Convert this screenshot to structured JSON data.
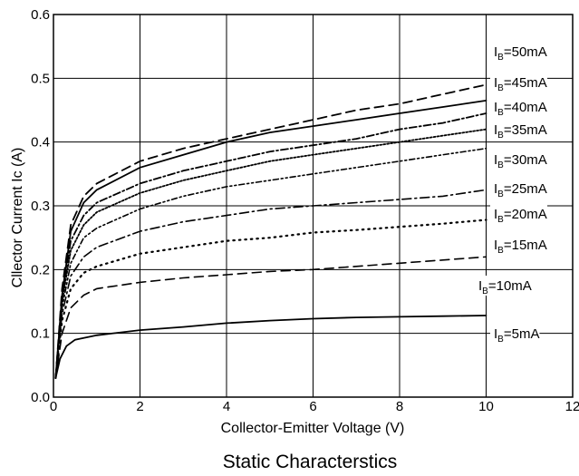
{
  "chart_data": {
    "type": "line",
    "title": "Static Characterstics",
    "xlabel": "Collector-Emitter Voltage (V)",
    "ylabel": "Cllector Current Ic (A)",
    "xlim": [
      0,
      12
    ],
    "ylim": [
      0,
      0.6
    ],
    "xticks": [
      "0",
      "2",
      "4",
      "6",
      "8",
      "10",
      "12"
    ],
    "yticks": [
      "0.0",
      "0.1",
      "0.2",
      "0.3",
      "0.4",
      "0.5",
      "0.6"
    ],
    "grid": true,
    "legend_position": "right (labels beside curve ends)",
    "series": [
      {
        "name": "I_B=50mA",
        "label_main": "I",
        "label_sub": "B",
        "label_rest": "=50mA",
        "dash": "10,6",
        "width": 1.8,
        "points": [
          [
            0.05,
            0.03
          ],
          [
            0.2,
            0.17
          ],
          [
            0.4,
            0.27
          ],
          [
            0.7,
            0.315
          ],
          [
            1,
            0.335
          ],
          [
            2,
            0.37
          ],
          [
            3,
            0.39
          ],
          [
            4,
            0.405
          ],
          [
            5,
            0.42
          ],
          [
            6,
            0.435
          ],
          [
            7,
            0.45
          ],
          [
            8,
            0.46
          ],
          [
            9,
            0.475
          ],
          [
            10,
            0.49
          ]
        ]
      },
      {
        "name": "I_B=45mA",
        "label_main": "I",
        "label_sub": "B",
        "label_rest": "=45mA",
        "dash": "",
        "width": 1.8,
        "points": [
          [
            0.05,
            0.03
          ],
          [
            0.2,
            0.16
          ],
          [
            0.4,
            0.26
          ],
          [
            0.7,
            0.305
          ],
          [
            1,
            0.325
          ],
          [
            2,
            0.36
          ],
          [
            3,
            0.38
          ],
          [
            4,
            0.4
          ],
          [
            5,
            0.415
          ],
          [
            6,
            0.425
          ],
          [
            7,
            0.435
          ],
          [
            8,
            0.445
          ],
          [
            9,
            0.455
          ],
          [
            10,
            0.465
          ]
        ]
      },
      {
        "name": "I_B=40mA",
        "label_main": "I",
        "label_sub": "B",
        "label_rest": "=40mA",
        "dash": "8,3,2,3",
        "width": 1.8,
        "points": [
          [
            0.05,
            0.03
          ],
          [
            0.2,
            0.155
          ],
          [
            0.4,
            0.245
          ],
          [
            0.7,
            0.285
          ],
          [
            1,
            0.305
          ],
          [
            2,
            0.335
          ],
          [
            3,
            0.355
          ],
          [
            4,
            0.37
          ],
          [
            5,
            0.385
          ],
          [
            6,
            0.395
          ],
          [
            7,
            0.405
          ],
          [
            8,
            0.42
          ],
          [
            9,
            0.43
          ],
          [
            10,
            0.445
          ]
        ]
      },
      {
        "name": "I_B=35mA",
        "label_main": "I",
        "label_sub": "B",
        "label_rest": "=35mA",
        "dash": "2,2",
        "width": 1.8,
        "points": [
          [
            0.05,
            0.03
          ],
          [
            0.2,
            0.15
          ],
          [
            0.4,
            0.23
          ],
          [
            0.7,
            0.27
          ],
          [
            1,
            0.29
          ],
          [
            2,
            0.32
          ],
          [
            3,
            0.34
          ],
          [
            4,
            0.355
          ],
          [
            5,
            0.37
          ],
          [
            6,
            0.38
          ],
          [
            7,
            0.39
          ],
          [
            8,
            0.4
          ],
          [
            9,
            0.41
          ],
          [
            10,
            0.42
          ]
        ]
      },
      {
        "name": "I_B=30mA",
        "label_main": "I",
        "label_sub": "B",
        "label_rest": "=30mA",
        "dash": "6,3,2,3,2,3",
        "width": 1.6,
        "points": [
          [
            0.05,
            0.03
          ],
          [
            0.2,
            0.14
          ],
          [
            0.4,
            0.21
          ],
          [
            0.7,
            0.25
          ],
          [
            1,
            0.265
          ],
          [
            2,
            0.295
          ],
          [
            3,
            0.315
          ],
          [
            4,
            0.33
          ],
          [
            5,
            0.34
          ],
          [
            6,
            0.35
          ],
          [
            7,
            0.36
          ],
          [
            8,
            0.37
          ],
          [
            9,
            0.38
          ],
          [
            10,
            0.39
          ]
        ]
      },
      {
        "name": "I_B=25mA",
        "label_main": "I",
        "label_sub": "B",
        "label_rest": "=25mA",
        "dash": "10,4,2,4",
        "width": 1.6,
        "points": [
          [
            0.05,
            0.03
          ],
          [
            0.2,
            0.13
          ],
          [
            0.4,
            0.19
          ],
          [
            0.7,
            0.22
          ],
          [
            1,
            0.235
          ],
          [
            2,
            0.26
          ],
          [
            3,
            0.275
          ],
          [
            4,
            0.285
          ],
          [
            5,
            0.295
          ],
          [
            6,
            0.3
          ],
          [
            7,
            0.305
          ],
          [
            8,
            0.31
          ],
          [
            9,
            0.315
          ],
          [
            10,
            0.325
          ]
        ]
      },
      {
        "name": "I_B=20mA",
        "label_main": "I",
        "label_sub": "B",
        "label_rest": "=20mA",
        "dash": "1.5,5",
        "width": 2.2,
        "points": [
          [
            0.05,
            0.03
          ],
          [
            0.2,
            0.12
          ],
          [
            0.4,
            0.17
          ],
          [
            0.7,
            0.195
          ],
          [
            1,
            0.205
          ],
          [
            2,
            0.225
          ],
          [
            3,
            0.235
          ],
          [
            4,
            0.245
          ],
          [
            5,
            0.25
          ],
          [
            6,
            0.258
          ],
          [
            7,
            0.262
          ],
          [
            8,
            0.267
          ],
          [
            9,
            0.272
          ],
          [
            10,
            0.278
          ]
        ]
      },
      {
        "name": "I_B=15mA",
        "label_main": "I",
        "label_sub": "B",
        "label_rest": "=15mA",
        "dash": "",
        "width": 0,
        "unlabeled_curve": true,
        "points": []
      },
      {
        "name": "I_B=10mA",
        "label_main": "I",
        "label_sub": "B",
        "label_rest": "=10mA",
        "dash": "10,6",
        "width": 1.6,
        "points": [
          [
            0.05,
            0.03
          ],
          [
            0.2,
            0.1
          ],
          [
            0.4,
            0.14
          ],
          [
            0.7,
            0.16
          ],
          [
            1,
            0.17
          ],
          [
            2,
            0.18
          ],
          [
            3,
            0.187
          ],
          [
            4,
            0.192
          ],
          [
            5,
            0.197
          ],
          [
            6,
            0.2
          ],
          [
            7,
            0.205
          ],
          [
            8,
            0.21
          ],
          [
            9,
            0.215
          ],
          [
            10,
            0.22
          ]
        ]
      },
      {
        "name": "I_B=5mA",
        "label_main": "I",
        "label_sub": "B",
        "label_rest": "=5mA",
        "dash": "",
        "width": 1.8,
        "points": [
          [
            0.05,
            0.03
          ],
          [
            0.15,
            0.06
          ],
          [
            0.3,
            0.08
          ],
          [
            0.5,
            0.09
          ],
          [
            1,
            0.097
          ],
          [
            2,
            0.105
          ],
          [
            3,
            0.11
          ],
          [
            4,
            0.116
          ],
          [
            5,
            0.12
          ],
          [
            6,
            0.123
          ],
          [
            7,
            0.125
          ],
          [
            8,
            0.126
          ],
          [
            9,
            0.127
          ],
          [
            10,
            0.128
          ]
        ]
      }
    ]
  }
}
